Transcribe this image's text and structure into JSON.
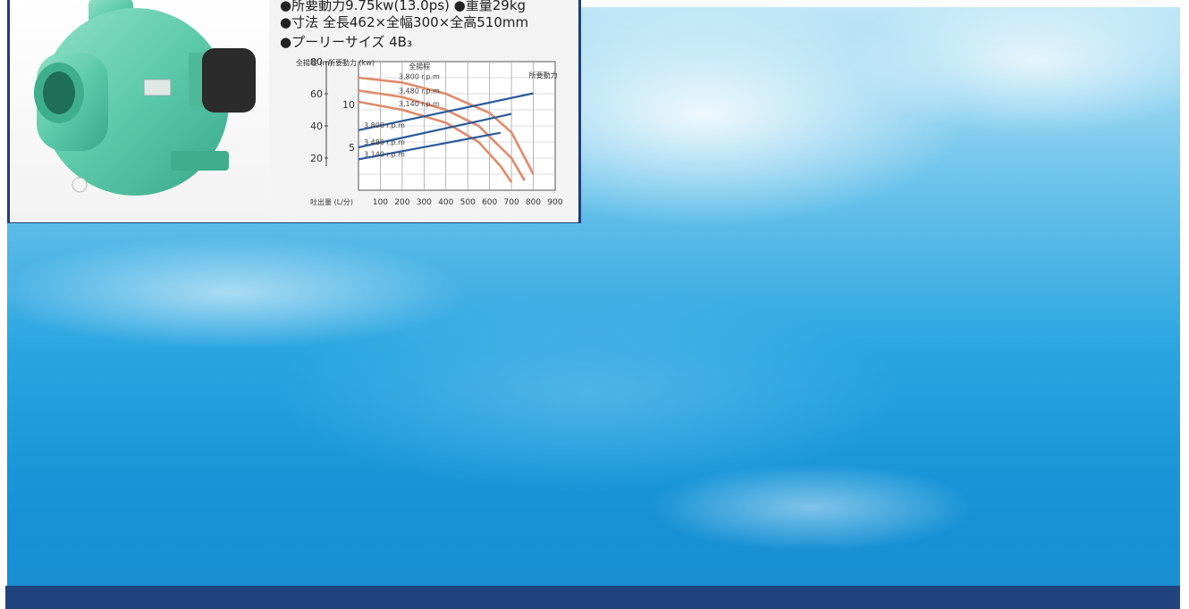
{
  "specs": {
    "line1": "●所要動力9.75kw(13.0ps) ●重量29kg",
    "line2": "●寸法 全長462×全幅300×全高510mm",
    "line3": "●プーリーサイズ 4B₃"
  },
  "colors": {
    "pump_body": "#5ccaa9",
    "frame_border": "#1d3e7a",
    "footer_bar": "#21447f",
    "head_curve": "#e08a6a",
    "power_curve": "#2a5a9a"
  },
  "chart_data": {
    "type": "line",
    "xlabel": "吐出量 (L/分)",
    "ylabel_head": "全揚程 (m)",
    "ylabel_power": "所要動力 (kw)",
    "x_ticks": [
      100,
      200,
      300,
      400,
      500,
      600,
      700,
      800,
      900
    ],
    "y_ticks_head": [
      80,
      60,
      40,
      20
    ],
    "y_ticks_power": [
      10,
      5
    ],
    "x_range": [
      0,
      900
    ],
    "head_range": [
      0,
      80
    ],
    "power_range": [
      0,
      15
    ],
    "grid": true,
    "head_series": [
      {
        "name": "3,800 r.p.m",
        "points": [
          [
            0,
            70
          ],
          [
            200,
            67
          ],
          [
            400,
            60
          ],
          [
            600,
            48
          ],
          [
            700,
            36
          ],
          [
            800,
            10
          ]
        ]
      },
      {
        "name": "3,480 r.p.m",
        "points": [
          [
            0,
            62
          ],
          [
            200,
            58
          ],
          [
            400,
            50
          ],
          [
            550,
            40
          ],
          [
            700,
            20
          ],
          [
            760,
            6
          ]
        ]
      },
      {
        "name": "3,140 r.p.m",
        "points": [
          [
            0,
            55
          ],
          [
            200,
            50
          ],
          [
            400,
            42
          ],
          [
            550,
            30
          ],
          [
            650,
            15
          ],
          [
            700,
            5
          ]
        ]
      }
    ],
    "power_series": [
      {
        "name": "3,800 r.p.m",
        "points": [
          [
            0,
            7.0
          ],
          [
            800,
            11.3
          ]
        ]
      },
      {
        "name": "3,480 r.p.m",
        "points": [
          [
            0,
            5.0
          ],
          [
            700,
            8.9
          ]
        ]
      },
      {
        "name": "3,140 r.p.m",
        "points": [
          [
            0,
            3.6
          ],
          [
            650,
            6.7
          ]
        ]
      }
    ],
    "annotations": {
      "head_label": "全揚程",
      "power_label": "所要動力"
    }
  }
}
